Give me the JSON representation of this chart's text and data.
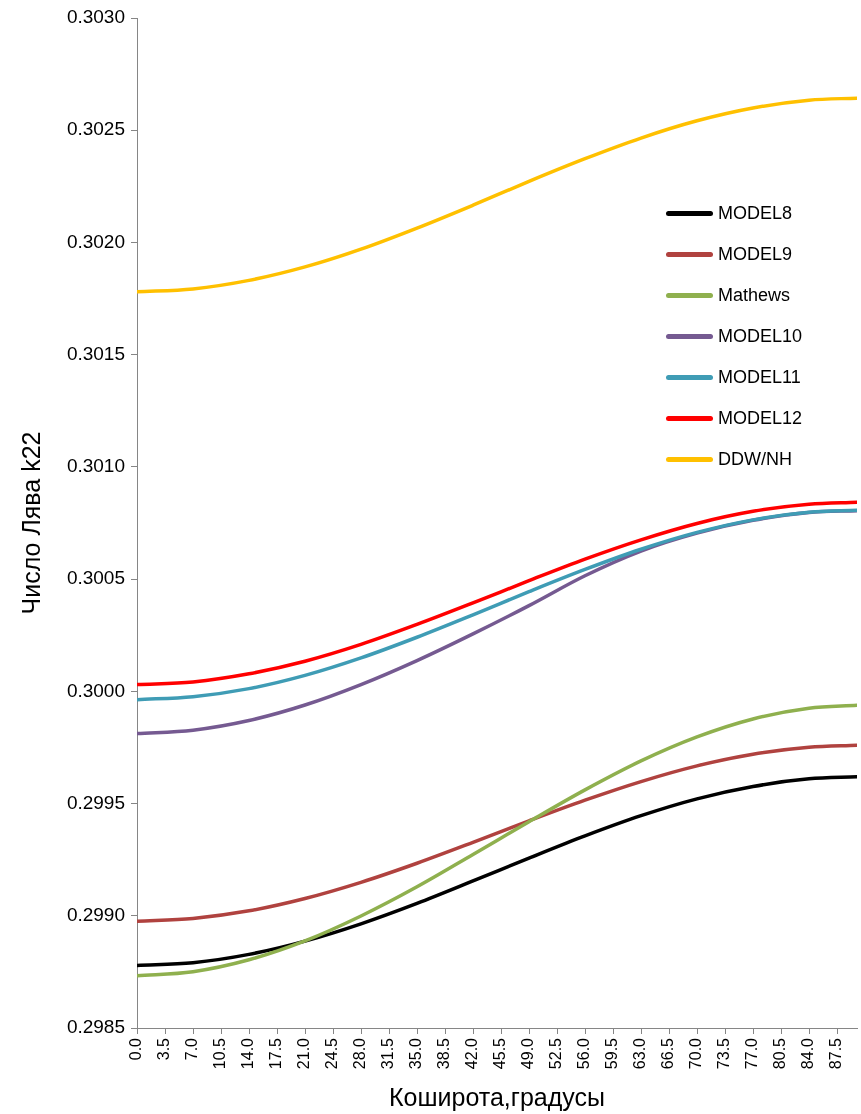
{
  "chart_data": {
    "type": "line",
    "xlabel": "Коширота,градусы",
    "ylabel": "Число Лява k22",
    "x": [
      0,
      7,
      14,
      21,
      28,
      35,
      42,
      49,
      56,
      63,
      70,
      77,
      84,
      90
    ],
    "series": [
      {
        "name": "MODEL8",
        "color": "#000000",
        "values": [
          0.298779,
          0.298791,
          0.298828,
          0.298887,
          0.298964,
          0.299055,
          0.299155,
          0.299257,
          0.299356,
          0.299446,
          0.299521,
          0.299576,
          0.29961,
          0.299619
        ]
      },
      {
        "name": "MODEL9",
        "color": "#b0423f",
        "values": [
          0.298976,
          0.298988,
          0.299022,
          0.299077,
          0.299149,
          0.299234,
          0.299327,
          0.299423,
          0.299515,
          0.299598,
          0.299668,
          0.29972,
          0.299751,
          0.29976
        ]
      },
      {
        "name": "Mathews",
        "color": "#8fb04e",
        "values": [
          0.298733,
          0.298751,
          0.298804,
          0.298888,
          0.298999,
          0.299129,
          0.299273,
          0.299419,
          0.299561,
          0.29969,
          0.299797,
          0.299877,
          0.299925,
          0.299938
        ]
      },
      {
        "name": "MODEL10",
        "color": "#755a91",
        "values": [
          0.299812,
          0.299827,
          0.29987,
          0.299939,
          0.30003,
          0.300137,
          0.300256,
          0.300382,
          0.300515,
          0.300625,
          0.300705,
          0.300762,
          0.300797,
          0.300805
        ]
      },
      {
        "name": "MODEL11",
        "color": "#3f9cb5",
        "values": [
          0.299963,
          0.299976,
          0.300012,
          0.300071,
          0.300149,
          0.300241,
          0.300341,
          0.300444,
          0.300543,
          0.300633,
          0.300708,
          0.300764,
          0.300798,
          0.300807
        ]
      },
      {
        "name": "MODEL12",
        "color": "#ff0000",
        "values": [
          0.30003,
          0.300042,
          0.300078,
          0.300134,
          0.300209,
          0.300298,
          0.300394,
          0.300493,
          0.300589,
          0.300675,
          0.300748,
          0.300802,
          0.300834,
          0.300843
        ]
      },
      {
        "name": "DDW/NH",
        "color": "#ffc000",
        "values": [
          0.30178,
          0.301793,
          0.301831,
          0.301891,
          0.30197,
          0.302064,
          0.302166,
          0.302272,
          0.302373,
          0.302465,
          0.302542,
          0.302599,
          0.302634,
          0.302643
        ]
      }
    ],
    "xlim": [
      0,
      90
    ],
    "xticks": [
      {
        "value": 0,
        "label": "0.0"
      },
      3.5,
      {
        "value": 7,
        "label": "7.0"
      },
      10.5,
      {
        "value": 14,
        "label": "14.0"
      },
      17.5,
      {
        "value": 21,
        "label": "21.0"
      },
      24.5,
      {
        "value": 28,
        "label": "28.0"
      },
      31.5,
      {
        "value": 35,
        "label": "35.0"
      },
      38.5,
      {
        "value": 42,
        "label": "42.0"
      },
      45.5,
      {
        "value": 49,
        "label": "49.0"
      },
      52.5,
      {
        "value": 56,
        "label": "56.0"
      },
      59.5,
      {
        "value": 63,
        "label": "63.0"
      },
      66.5,
      {
        "value": 70,
        "label": "70.0"
      },
      73.5,
      {
        "value": 77,
        "label": "77.0"
      },
      80.5,
      {
        "value": 84,
        "label": "84.0"
      },
      87.5
    ],
    "ylim": [
      0.2985,
      0.303
    ],
    "yticks": [
      0.2985,
      {
        "value": 0.299,
        "label": "0.2990"
      },
      0.2995,
      {
        "value": 0.3,
        "label": "0.3000"
      },
      0.3005,
      {
        "value": 0.301,
        "label": "0.3010"
      },
      0.3015,
      {
        "value": 0.302,
        "label": "0.3020"
      },
      0.3025,
      {
        "value": 0.303,
        "label": "0.3030"
      }
    ],
    "legend": "top right"
  }
}
